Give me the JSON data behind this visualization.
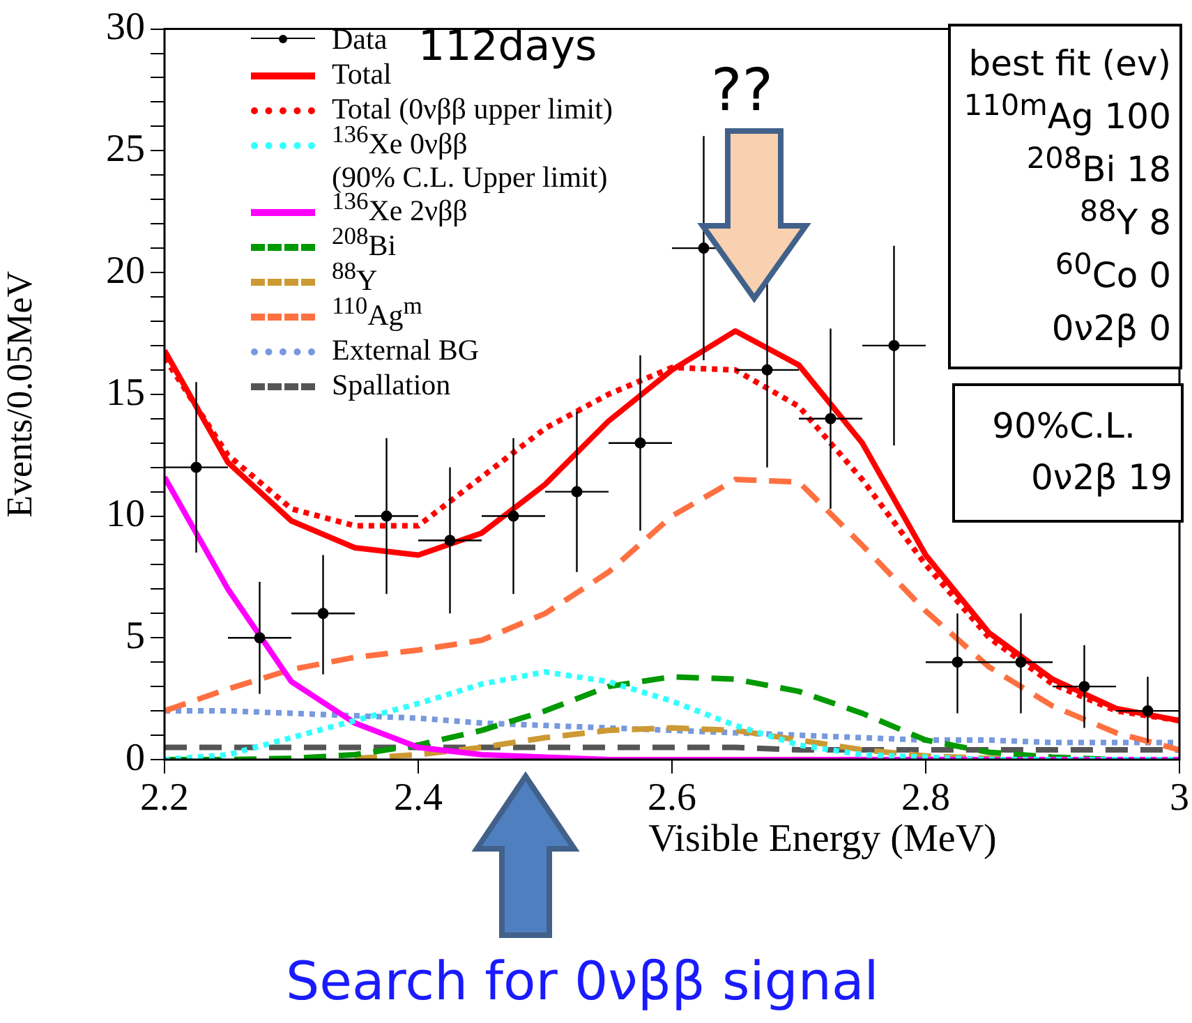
{
  "chart_data": {
    "type": "line",
    "xlabel": "Visible Energy (MeV)",
    "ylabel": "Events/0.05MeV",
    "x": [
      2.2,
      2.25,
      2.3,
      2.35,
      2.4,
      2.45,
      2.5,
      2.55,
      2.6,
      2.65,
      2.7,
      2.75,
      2.8,
      2.85,
      2.9,
      2.95,
      3.0
    ],
    "xlim": [
      2.2,
      3.0
    ],
    "xticks": [
      2.2,
      2.4,
      2.6,
      2.8,
      3
    ],
    "ylim": [
      0,
      30
    ],
    "yticks": [
      0,
      {
        "value": 1,
        "label": null
      },
      {
        "value": 2,
        "label": null
      },
      {
        "value": 3,
        "label": null
      },
      {
        "value": 4,
        "label": null
      },
      5,
      {
        "value": 6,
        "label": null
      },
      {
        "value": 7,
        "label": null
      },
      {
        "value": 8,
        "label": null
      },
      {
        "value": 9,
        "label": null
      },
      10,
      {
        "value": 11,
        "label": null
      },
      {
        "value": 12,
        "label": null
      },
      {
        "value": 13,
        "label": null
      },
      {
        "value": 14,
        "label": null
      },
      15,
      {
        "value": 16,
        "label": null
      },
      {
        "value": 17,
        "label": null
      },
      {
        "value": 18,
        "label": null
      },
      {
        "value": 19,
        "label": null
      },
      20,
      {
        "value": 21,
        "label": null
      },
      {
        "value": 22,
        "label": null
      },
      {
        "value": 23,
        "label": null
      },
      {
        "value": 24,
        "label": null
      },
      25,
      {
        "value": 26,
        "label": null
      },
      {
        "value": 27,
        "label": null
      },
      {
        "value": 28,
        "label": null
      },
      {
        "value": 29,
        "label": null
      },
      30
    ],
    "grid": false,
    "legend": "top left",
    "series": [
      {
        "name": "Data",
        "type": "scatter",
        "color": "#000000",
        "marker": "circle",
        "x": [
          2.225,
          2.275,
          2.325,
          2.375,
          2.425,
          2.475,
          2.525,
          2.575,
          2.625,
          2.675,
          2.725,
          2.775,
          2.825,
          2.875,
          2.925,
          2.975
        ],
        "values": [
          12,
          5,
          6,
          10,
          9,
          10,
          11,
          13,
          21,
          16,
          14,
          17,
          4,
          4,
          3,
          2
        ],
        "errors": [
          [
            8.5,
            15.5
          ],
          [
            2.7,
            7.3
          ],
          [
            3.5,
            8.4
          ],
          [
            6.8,
            13.2
          ],
          [
            6,
            12
          ],
          [
            6.8,
            13.2
          ],
          [
            7.7,
            14.3
          ],
          [
            9.4,
            16.6
          ],
          [
            16.4,
            25.6
          ],
          [
            12,
            19.6
          ],
          [
            10.3,
            17.7
          ],
          [
            12.9,
            21.1
          ],
          [
            1.9,
            6
          ],
          [
            1.9,
            6
          ],
          [
            1.3,
            4.7
          ],
          [
            0.7,
            3.4
          ]
        ],
        "xerrors": [
          0.025,
          0.025,
          0.025,
          0.025,
          0.025,
          0.025,
          0.025,
          0.025,
          0.025,
          0.025,
          0.025,
          0.025,
          0.025,
          0.025,
          0.025,
          0.025
        ]
      },
      {
        "name": "Total",
        "color": "#ff0000",
        "line_style": "solid",
        "values": [
          16.8,
          12.2,
          9.8,
          8.7,
          8.4,
          9.3,
          11.3,
          13.9,
          16.0,
          17.6,
          16.2,
          13.0,
          8.4,
          5.2,
          3.3,
          2.1,
          1.6
        ]
      },
      {
        "name": "Total (0νββ upper limit)",
        "color": "#ff0000",
        "line_style": "dotted",
        "values": [
          16.5,
          12.5,
          10.3,
          9.6,
          9.6,
          11.6,
          13.6,
          15.0,
          16.1,
          16.0,
          14.5,
          11.5,
          8.0,
          5.0,
          3.1,
          2.0,
          1.6
        ]
      },
      {
        "name": "$^{136}$Xe 0νββ\n(90% C.L. Upper limit)",
        "color": "#33ffff",
        "line_style": "dotted",
        "values": [
          0,
          0.2,
          0.9,
          1.6,
          2.3,
          3.1,
          3.6,
          3.2,
          2.4,
          1.4,
          0.6,
          0.2,
          0.1,
          0,
          0,
          0,
          0
        ]
      },
      {
        "name": "$^{136}$Xe 2νββ",
        "color": "#ff00ff",
        "line_style": "solid",
        "values": [
          11.6,
          7.0,
          3.2,
          1.5,
          0.5,
          0.2,
          0.1,
          0,
          0,
          0,
          0,
          0,
          0,
          0,
          0,
          0,
          0
        ]
      },
      {
        "name": "$^{208}$Bi",
        "color": "#009900",
        "line_style": "dashed",
        "values": [
          0,
          0,
          0.05,
          0.2,
          0.6,
          1.2,
          2.0,
          3.0,
          3.4,
          3.3,
          2.8,
          1.9,
          0.8,
          0.3,
          0.1,
          0,
          0
        ]
      },
      {
        "name": "$^{88}$Y",
        "color": "#cc9933",
        "line_style": "dashed",
        "values": [
          null,
          null,
          null,
          0.05,
          0.2,
          0.5,
          0.9,
          1.2,
          1.3,
          1.2,
          0.8,
          0.4,
          0.15,
          0.05,
          0,
          0,
          0
        ]
      },
      {
        "name": "$^{110}$Ag$^{m}$",
        "color": "#ff7040",
        "line_style": "dashed",
        "values": [
          2.0,
          2.9,
          3.7,
          4.2,
          4.5,
          4.9,
          6.0,
          7.7,
          10.0,
          11.5,
          11.4,
          8.8,
          6.1,
          3.8,
          2.2,
          1.1,
          0.4
        ]
      },
      {
        "name": "External BG",
        "color": "#7799dd",
        "line_style": "dotted",
        "values": [
          2.0,
          2.0,
          1.9,
          1.8,
          1.7,
          1.5,
          1.4,
          1.3,
          1.2,
          1.1,
          1.0,
          0.9,
          0.8,
          0.8,
          0.7,
          0.7,
          0.7
        ]
      },
      {
        "name": "Spallation",
        "color": "#555555",
        "line_style": "dashed",
        "values": [
          0.5,
          0.5,
          0.5,
          0.5,
          0.5,
          0.5,
          0.5,
          0.5,
          0.5,
          0.5,
          0.4,
          0.4,
          0.4,
          0.4,
          0.4,
          0.4,
          0.4
        ]
      }
    ],
    "annotations": [
      "112days",
      "??",
      "best fit (ev)",
      "$^{110m}$Ag 100",
      "$^{208}$Bi 18",
      "$^{88}$Y 8",
      "$^{60}$Co 0",
      "0ν2β 0",
      "90%C.L.",
      "0ν2β 19",
      "Search for 0νββ signal"
    ]
  }
}
